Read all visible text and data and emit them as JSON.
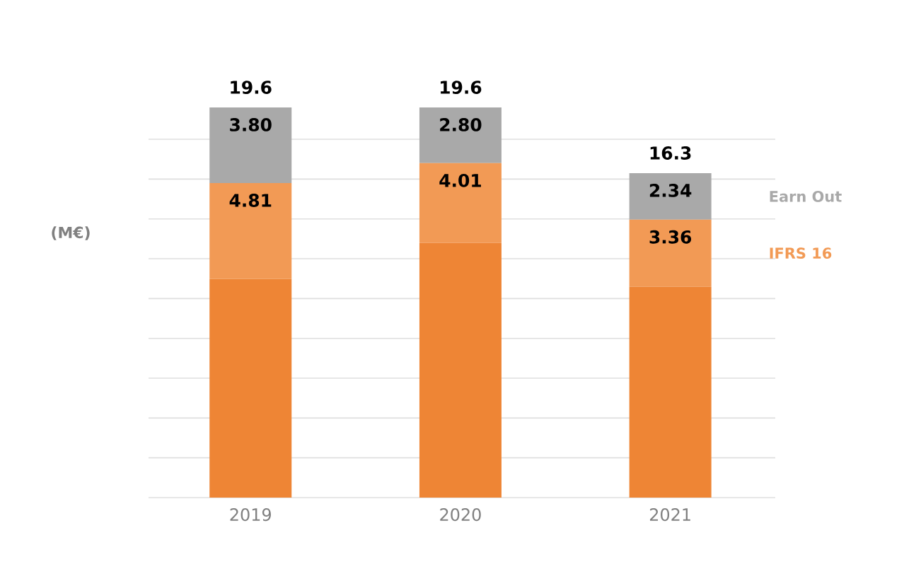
{
  "chart_data": {
    "type": "bar",
    "stacked": true,
    "ylabel": "(M€)",
    "categories": [
      "2019",
      "2020",
      "2021"
    ],
    "series": [
      {
        "color": "#ee8535",
        "values": [
          10.99,
          12.79,
          10.6
        ]
      },
      {
        "name": "IFRS 16",
        "color": "#f29a55",
        "values": [
          4.81,
          4.01,
          3.36
        ],
        "value_labels": [
          "4.81",
          "4.01",
          "3.36"
        ]
      },
      {
        "name": "Earn Out",
        "color": "#a9a9a9",
        "values": [
          3.8,
          2.8,
          2.34
        ],
        "value_labels": [
          "3.80",
          "2.80",
          "2.34"
        ]
      }
    ],
    "totals": [
      "19.6",
      "19.6",
      "16.3"
    ],
    "grid": "y",
    "legend": "right"
  }
}
